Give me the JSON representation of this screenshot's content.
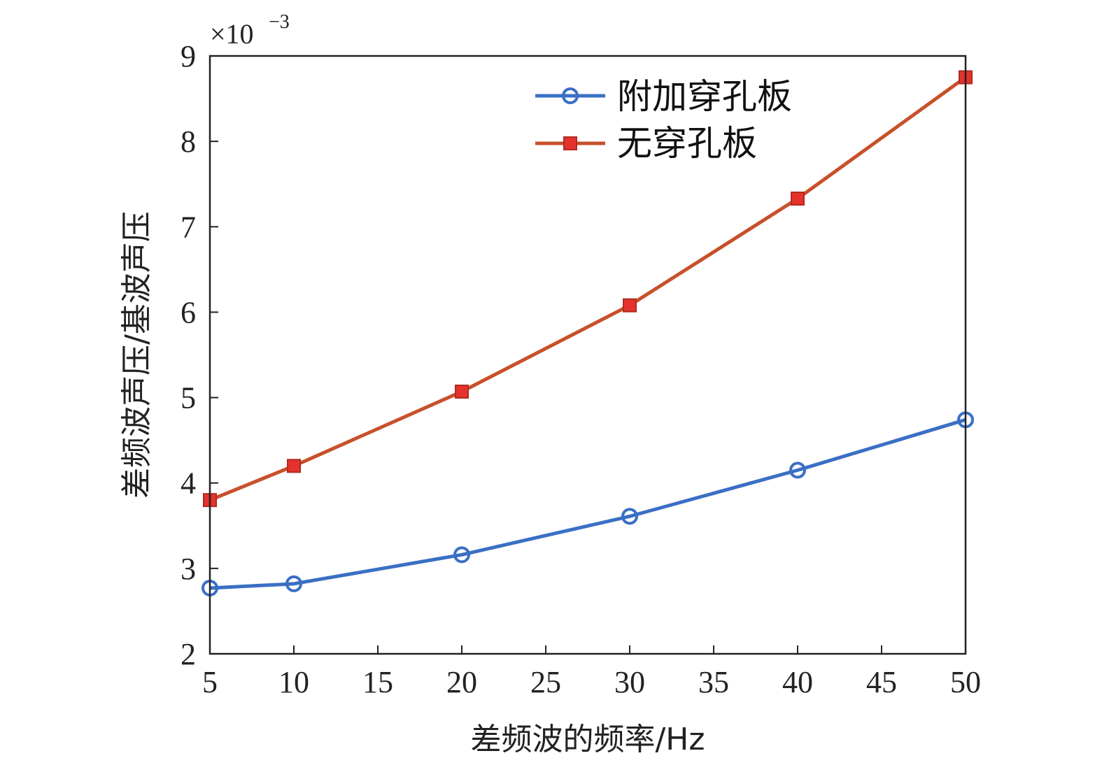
{
  "chart_data": {
    "type": "line",
    "xlabel": "差频波的频率/Hz",
    "ylabel": "差频波声压/基波声压",
    "y_multiplier_base": "×10",
    "y_multiplier_exp": "−3",
    "xlim": [
      5,
      50
    ],
    "ylim": [
      2,
      9
    ],
    "xticks": [
      5,
      10,
      15,
      20,
      25,
      30,
      35,
      40,
      45,
      50
    ],
    "yticks": [
      2,
      3,
      4,
      5,
      6,
      7,
      8,
      9
    ],
    "x": [
      5,
      10,
      20,
      30,
      40,
      50
    ],
    "legend_position": "top-right",
    "grid": false,
    "series": [
      {
        "name": "附加穿孔板",
        "marker": "circle",
        "color": "#3a6fc4",
        "values": [
          2.77,
          2.82,
          3.16,
          3.61,
          4.15,
          4.74
        ]
      },
      {
        "name": "无穿孔板",
        "marker": "square",
        "color": "#e5322d",
        "line_color": "#c8502a",
        "values": [
          3.8,
          4.2,
          5.07,
          6.08,
          7.33,
          8.75
        ]
      }
    ]
  }
}
